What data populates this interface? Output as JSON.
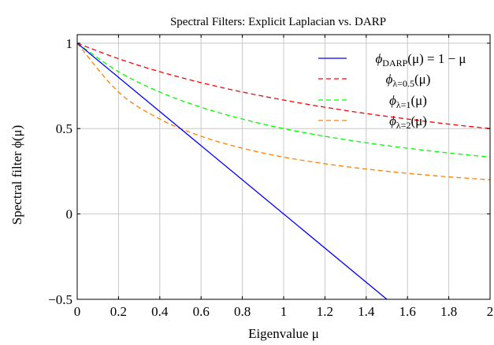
{
  "chart_data": {
    "type": "line",
    "title": "Spectral Filters: Explicit Laplacian vs. DARP",
    "xlabel": "Eigenvalue μ",
    "ylabel": "Spectral filter ϕ(μ)",
    "xlim": [
      0,
      2
    ],
    "ylim": [
      -0.5,
      1.05
    ],
    "x_ticks": [
      0,
      0.2,
      0.4,
      0.6,
      0.8,
      1,
      1.2,
      1.4,
      1.6,
      1.8,
      2
    ],
    "x_tick_labels": [
      "0",
      "0.2",
      "0.4",
      "0.6",
      "0.8",
      "1",
      "1.2",
      "1.4",
      "1.6",
      "1.8",
      "2"
    ],
    "y_ticks": [
      -0.5,
      0,
      0.5,
      1
    ],
    "y_tick_labels": [
      "−0.5",
      "0",
      "0.5",
      "1"
    ],
    "grid": true,
    "legend_position": "top-right",
    "series": [
      {
        "name": "ϕDARP(μ) = 1 − μ",
        "legend_main": "ϕ",
        "legend_sub": "DARP",
        "legend_rest": "(μ) = 1 − μ",
        "color": "#0000ff",
        "dash": "solid",
        "x": [
          0,
          1.5
        ],
        "y": [
          1,
          -0.5
        ]
      },
      {
        "name": "ϕλ=0.5(μ)",
        "legend_main": "ϕ",
        "legend_sub": "λ=0.5",
        "legend_rest": "(μ)",
        "color": "#ff0000",
        "dash": "dashed",
        "x": [
          0,
          0.2,
          0.4,
          0.6,
          0.8,
          1,
          1.2,
          1.4,
          1.6,
          1.8,
          2
        ],
        "y": [
          1,
          0.909,
          0.833,
          0.769,
          0.714,
          0.667,
          0.625,
          0.588,
          0.556,
          0.526,
          0.5
        ]
      },
      {
        "name": "ϕλ=1(μ)",
        "legend_main": "ϕ",
        "legend_sub": "λ=1",
        "legend_rest": "(μ)",
        "color": "#00ff00",
        "dash": "dashed",
        "x": [
          0,
          0.2,
          0.4,
          0.6,
          0.8,
          1,
          1.2,
          1.4,
          1.6,
          1.8,
          2
        ],
        "y": [
          1,
          0.833,
          0.714,
          0.625,
          0.556,
          0.5,
          0.455,
          0.417,
          0.385,
          0.357,
          0.333
        ]
      },
      {
        "name": "ϕλ=2(μ)",
        "legend_main": "ϕ",
        "legend_sub": "λ=2",
        "legend_rest": "(μ)",
        "color": "#ff8000",
        "dash": "dashed",
        "x": [
          0,
          0.2,
          0.4,
          0.6,
          0.8,
          1,
          1.2,
          1.4,
          1.6,
          1.8,
          2
        ],
        "y": [
          1,
          0.714,
          0.556,
          0.455,
          0.385,
          0.333,
          0.294,
          0.263,
          0.238,
          0.217,
          0.2
        ]
      }
    ]
  }
}
